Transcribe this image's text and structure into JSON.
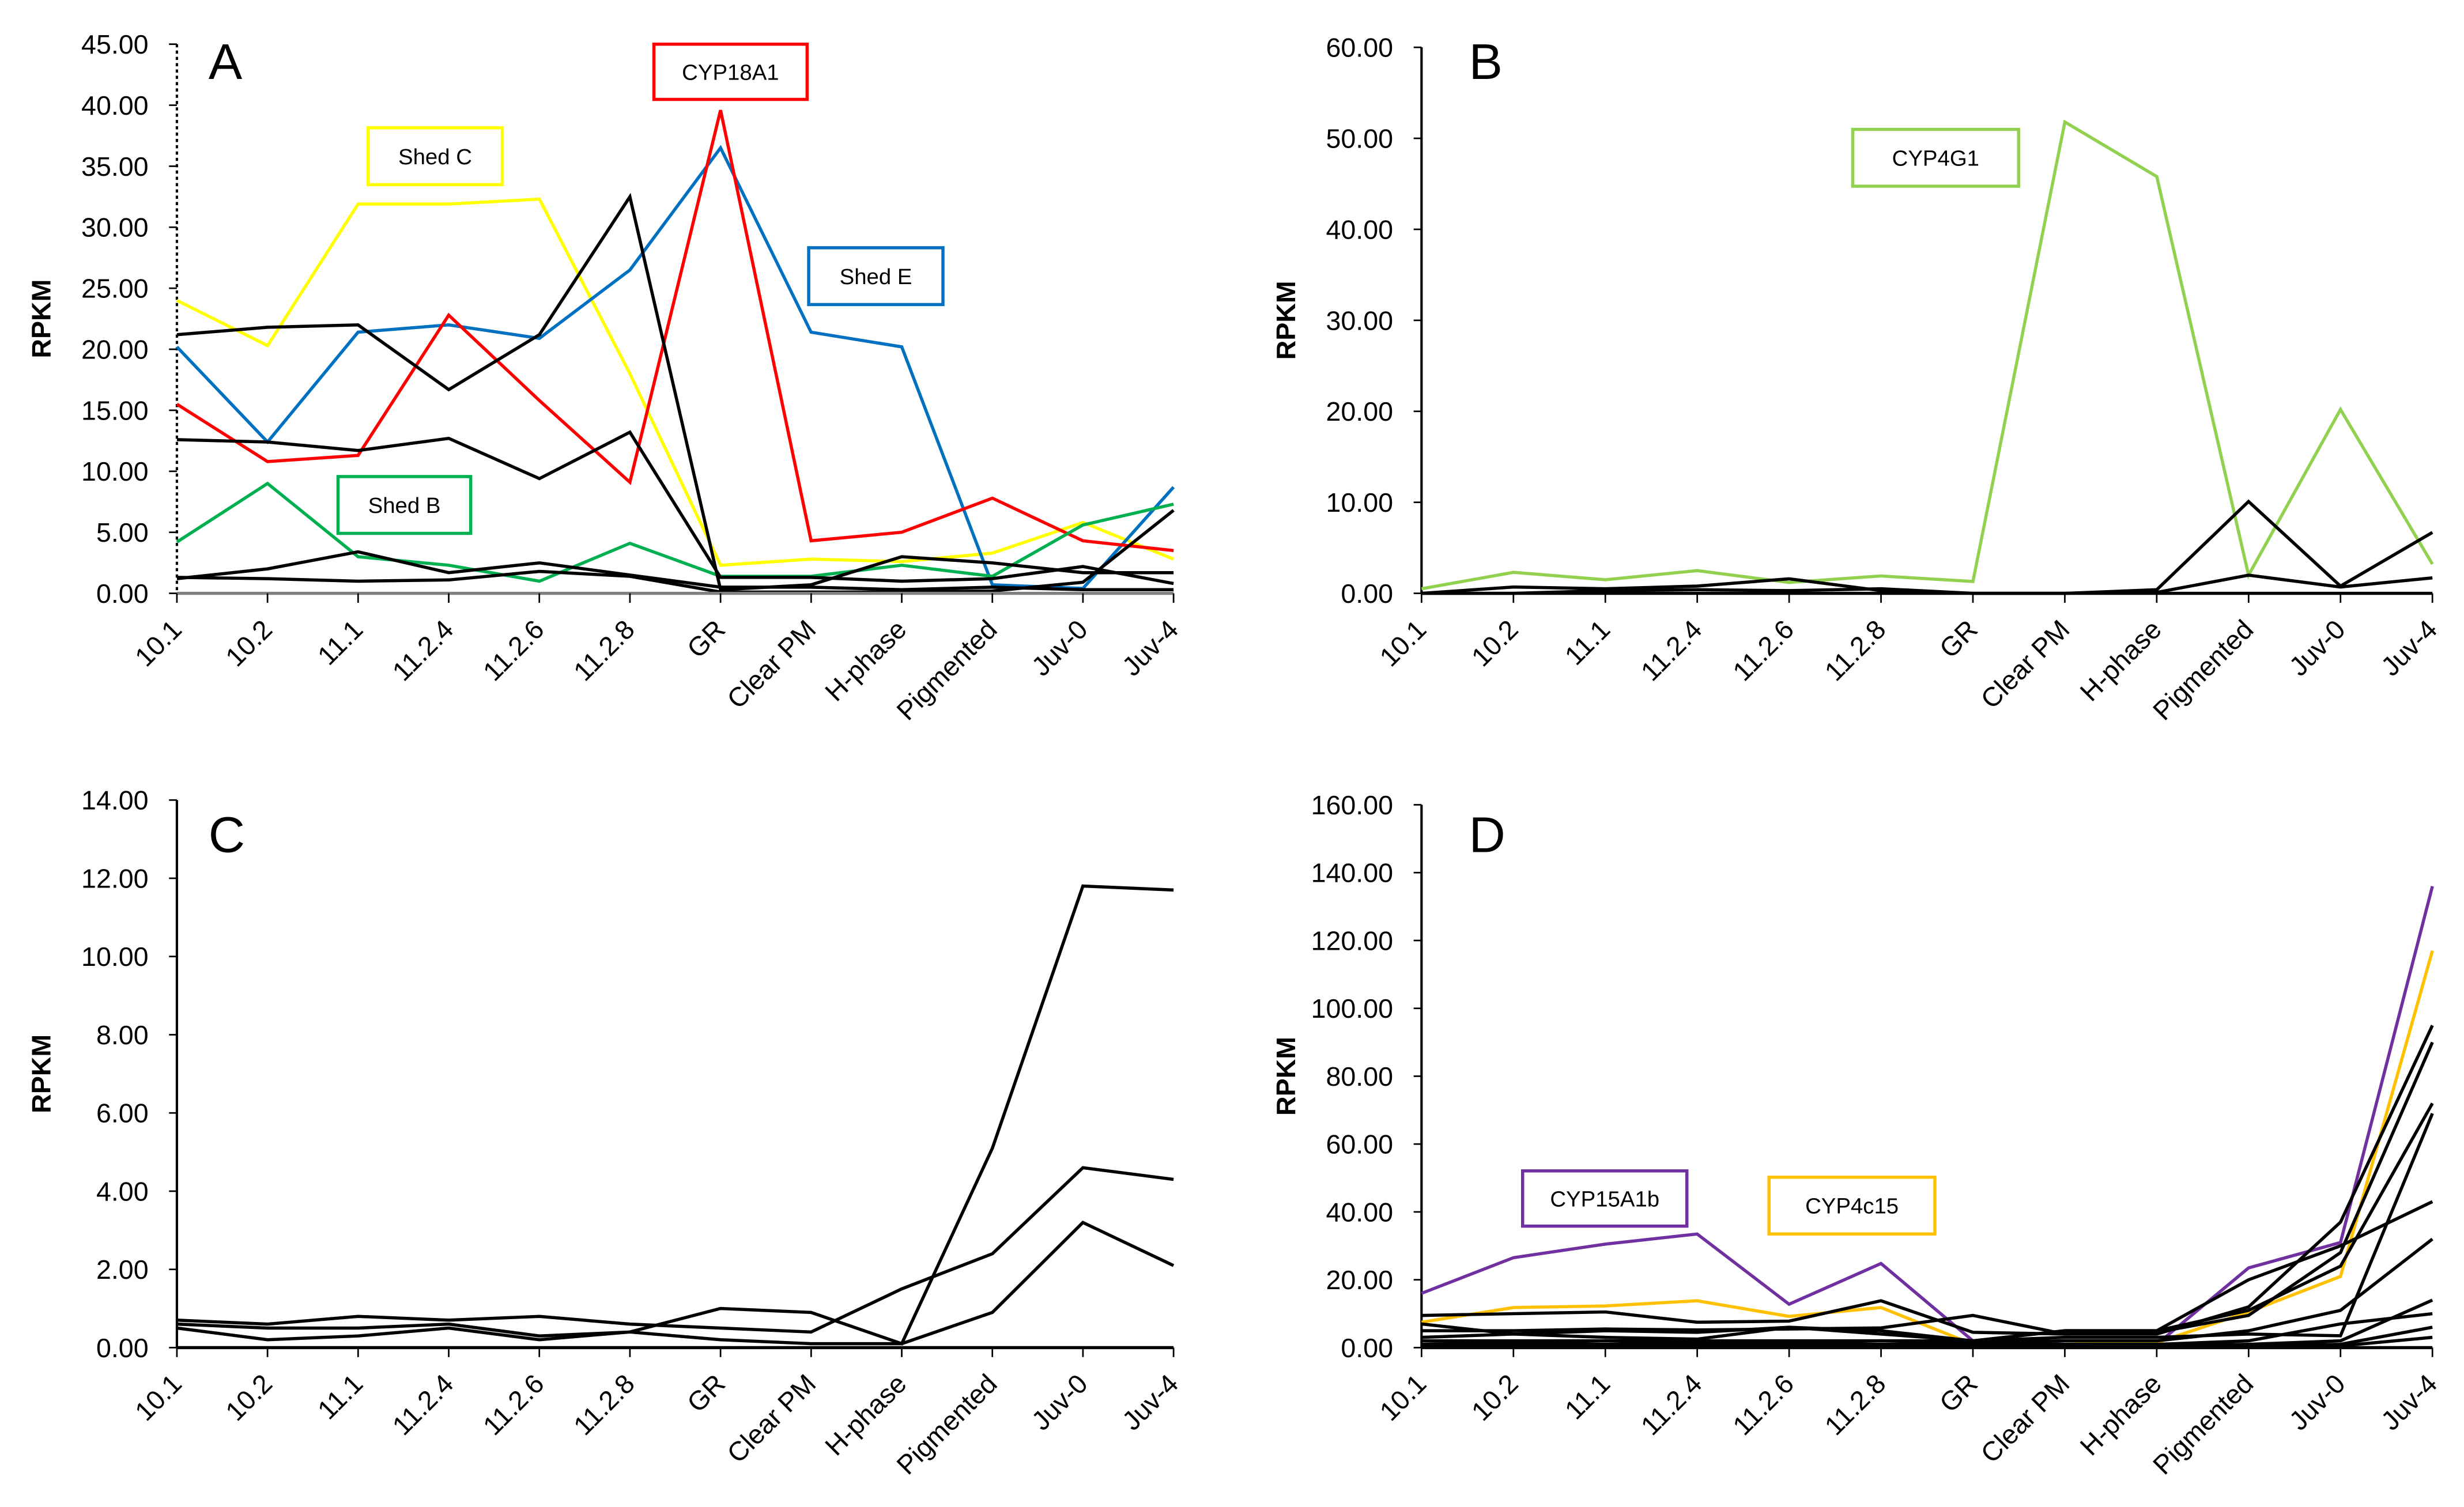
{
  "chart_data": [
    {
      "type": "line",
      "panel": "A",
      "ylabel": "RPKM",
      "ylim": [
        0,
        45
      ],
      "ytick_step": 5,
      "categories": [
        "10.1",
        "10.2",
        "11.1",
        "11.2.4",
        "11.2.6",
        "11.2.8",
        "GR",
        "Clear PM",
        "H-phase",
        "Pigmented",
        "Juv-0",
        "Juv-4"
      ],
      "series": [
        {
          "name": "Shed C",
          "color": "#FFFF00",
          "labeled": true,
          "values": [
            24,
            20.3,
            31.9,
            31.9,
            32.3,
            18,
            2.3,
            2.8,
            2.6,
            3.3,
            5.8,
            2.8
          ]
        },
        {
          "name": "Shed E",
          "color": "#0070C0",
          "labeled": true,
          "values": [
            20.2,
            12.4,
            21.4,
            22,
            20.9,
            26.5,
            36.5,
            21.4,
            20.2,
            0.7,
            0.4,
            8.7
          ]
        },
        {
          "name": "CYP18A1",
          "color": "#FF0000",
          "labeled": true,
          "values": [
            15.5,
            10.8,
            11.3,
            22.8,
            15.8,
            9.1,
            39.6,
            4.3,
            5,
            7.8,
            4.3,
            3.5
          ]
        },
        {
          "name": "Shed B",
          "color": "#00B050",
          "labeled": true,
          "values": [
            4.2,
            9,
            3,
            2.3,
            1,
            4.1,
            1.4,
            1.4,
            2.3,
            1.4,
            5.6,
            7.3
          ]
        },
        {
          "name": "",
          "color": "#000000",
          "values": [
            21.2,
            21.8,
            22,
            16.7,
            21.2,
            32.5,
            0.3,
            0.7,
            3,
            2.5,
            1.7,
            1.7
          ]
        },
        {
          "name": "",
          "color": "#000000",
          "values": [
            12.6,
            12.4,
            11.7,
            12.7,
            9.4,
            13.2,
            1.3,
            1.3,
            1,
            1.2,
            2.2,
            0.8
          ]
        },
        {
          "name": "",
          "color": "#000000",
          "values": [
            1.2,
            2,
            3.4,
            1.7,
            2.5,
            1.5,
            0.5,
            0.5,
            0.3,
            0.5,
            0.3,
            0.3
          ]
        },
        {
          "name": "",
          "color": "#000000",
          "values": [
            1.3,
            1.2,
            1,
            1.1,
            1.8,
            1.4,
            0.1,
            0.1,
            0.1,
            0.2,
            0.9,
            6.8
          ]
        }
      ]
    },
    {
      "type": "line",
      "panel": "B",
      "ylabel": "RPKM",
      "ylim": [
        0,
        60
      ],
      "ytick_step": 10,
      "categories": [
        "10.1",
        "10.2",
        "11.1",
        "11.2.4",
        "11.2.6",
        "11.2.8",
        "GR",
        "Clear PM",
        "H-phase",
        "Pigmented",
        "Juv-0",
        "Juv-4"
      ],
      "series": [
        {
          "name": "CYP4G1",
          "color": "#92D050",
          "labeled": true,
          "values": [
            0.5,
            2.3,
            1.5,
            2.5,
            1.2,
            1.9,
            1.3,
            51.8,
            45.8,
            2,
            20.2,
            3.2
          ]
        },
        {
          "name": "",
          "color": "#000000",
          "values": [
            0,
            0.7,
            0.5,
            0.8,
            1.6,
            0.3,
            0,
            0,
            0.4,
            10.1,
            0.8,
            6.7
          ]
        },
        {
          "name": "",
          "color": "#000000",
          "values": [
            0,
            0,
            0.3,
            0.4,
            0.3,
            0.5,
            0,
            0,
            0.1,
            2,
            0.7,
            1.7
          ]
        }
      ]
    },
    {
      "type": "line",
      "panel": "C",
      "ylabel": "RPKM",
      "ylim": [
        0,
        14
      ],
      "ytick_step": 2,
      "categories": [
        "10.1",
        "10.2",
        "11.1",
        "11.2.4",
        "11.2.6",
        "11.2.8",
        "GR",
        "Clear PM",
        "H-phase",
        "Pigmented",
        "Juv-0",
        "Juv-4"
      ],
      "series": [
        {
          "name": "",
          "color": "#000000",
          "values": [
            0.6,
            0.5,
            0.5,
            0.6,
            0.3,
            0.4,
            1,
            0.9,
            0.1,
            5.1,
            11.8,
            11.7
          ]
        },
        {
          "name": "",
          "color": "#000000",
          "values": [
            0.7,
            0.6,
            0.8,
            0.7,
            0.8,
            0.6,
            0.5,
            0.4,
            1.5,
            2.4,
            4.6,
            4.3
          ]
        },
        {
          "name": "",
          "color": "#000000",
          "values": [
            0.5,
            0.2,
            0.3,
            0.5,
            0.2,
            0.4,
            0.2,
            0.1,
            0.1,
            0.9,
            3.2,
            2.1
          ]
        }
      ]
    },
    {
      "type": "line",
      "panel": "D",
      "ylabel": "RPKM",
      "ylim": [
        0,
        160
      ],
      "ytick_step": 20,
      "categories": [
        "10.1",
        "10.2",
        "11.1",
        "11.2.4",
        "11.2.6",
        "11.2.8",
        "GR",
        "Clear PM",
        "H-phase",
        "Pigmented",
        "Juv-0",
        "Juv-4"
      ],
      "series": [
        {
          "name": "CYP15A1b",
          "color": "#7030A0",
          "labeled": true,
          "values": [
            16,
            26.5,
            30.5,
            33.5,
            12.8,
            24.8,
            2,
            1,
            1,
            23.5,
            31,
            136
          ]
        },
        {
          "name": "CYP4c15",
          "color": "#FFC000",
          "labeled": true,
          "values": [
            7.5,
            11.8,
            12.3,
            13.8,
            9.2,
            11.8,
            1,
            1,
            1.5,
            10.5,
            21,
            117
          ]
        },
        {
          "name": "",
          "color": "#000000",
          "values": [
            9.5,
            10,
            10.5,
            7.5,
            7.8,
            13.8,
            4.5,
            4,
            4,
            12,
            37,
            95
          ]
        },
        {
          "name": "",
          "color": "#000000",
          "values": [
            5,
            5,
            5.5,
            5.2,
            5.5,
            5.8,
            9.5,
            4,
            4.5,
            9.5,
            28,
            90
          ]
        },
        {
          "name": "",
          "color": "#000000",
          "values": [
            7,
            4,
            3,
            2.5,
            6,
            4,
            2,
            5,
            5,
            20,
            30,
            43
          ]
        },
        {
          "name": "",
          "color": "#000000",
          "values": [
            2,
            2,
            2,
            2,
            2,
            2,
            2,
            5,
            5,
            11,
            24,
            72
          ]
        },
        {
          "name": "",
          "color": "#000000",
          "values": [
            3,
            4,
            5,
            4.5,
            6,
            5,
            2,
            3,
            3,
            4,
            3.5,
            69
          ]
        },
        {
          "name": "",
          "color": "#000000",
          "values": [
            1,
            1.5,
            2,
            1.5,
            1.5,
            2,
            1.5,
            2,
            2,
            5,
            11,
            32
          ]
        },
        {
          "name": "",
          "color": "#000000",
          "values": [
            1,
            1,
            1,
            1,
            1,
            1,
            1,
            1,
            1,
            2,
            7,
            10
          ]
        },
        {
          "name": "",
          "color": "#000000",
          "values": [
            0.5,
            0.5,
            0.5,
            0.5,
            0.5,
            0.5,
            0.5,
            0.5,
            0.5,
            1,
            2,
            14
          ]
        },
        {
          "name": "",
          "color": "#000000",
          "values": [
            0.5,
            0.5,
            0.5,
            0.5,
            0.5,
            0.5,
            0.5,
            0.5,
            0.5,
            0.5,
            1,
            6
          ]
        },
        {
          "name": "",
          "color": "#000000",
          "values": [
            0.2,
            0.2,
            0.2,
            0.2,
            0.2,
            0.2,
            0.2,
            0.2,
            0.2,
            0.2,
            0.5,
            3
          ]
        }
      ]
    }
  ]
}
